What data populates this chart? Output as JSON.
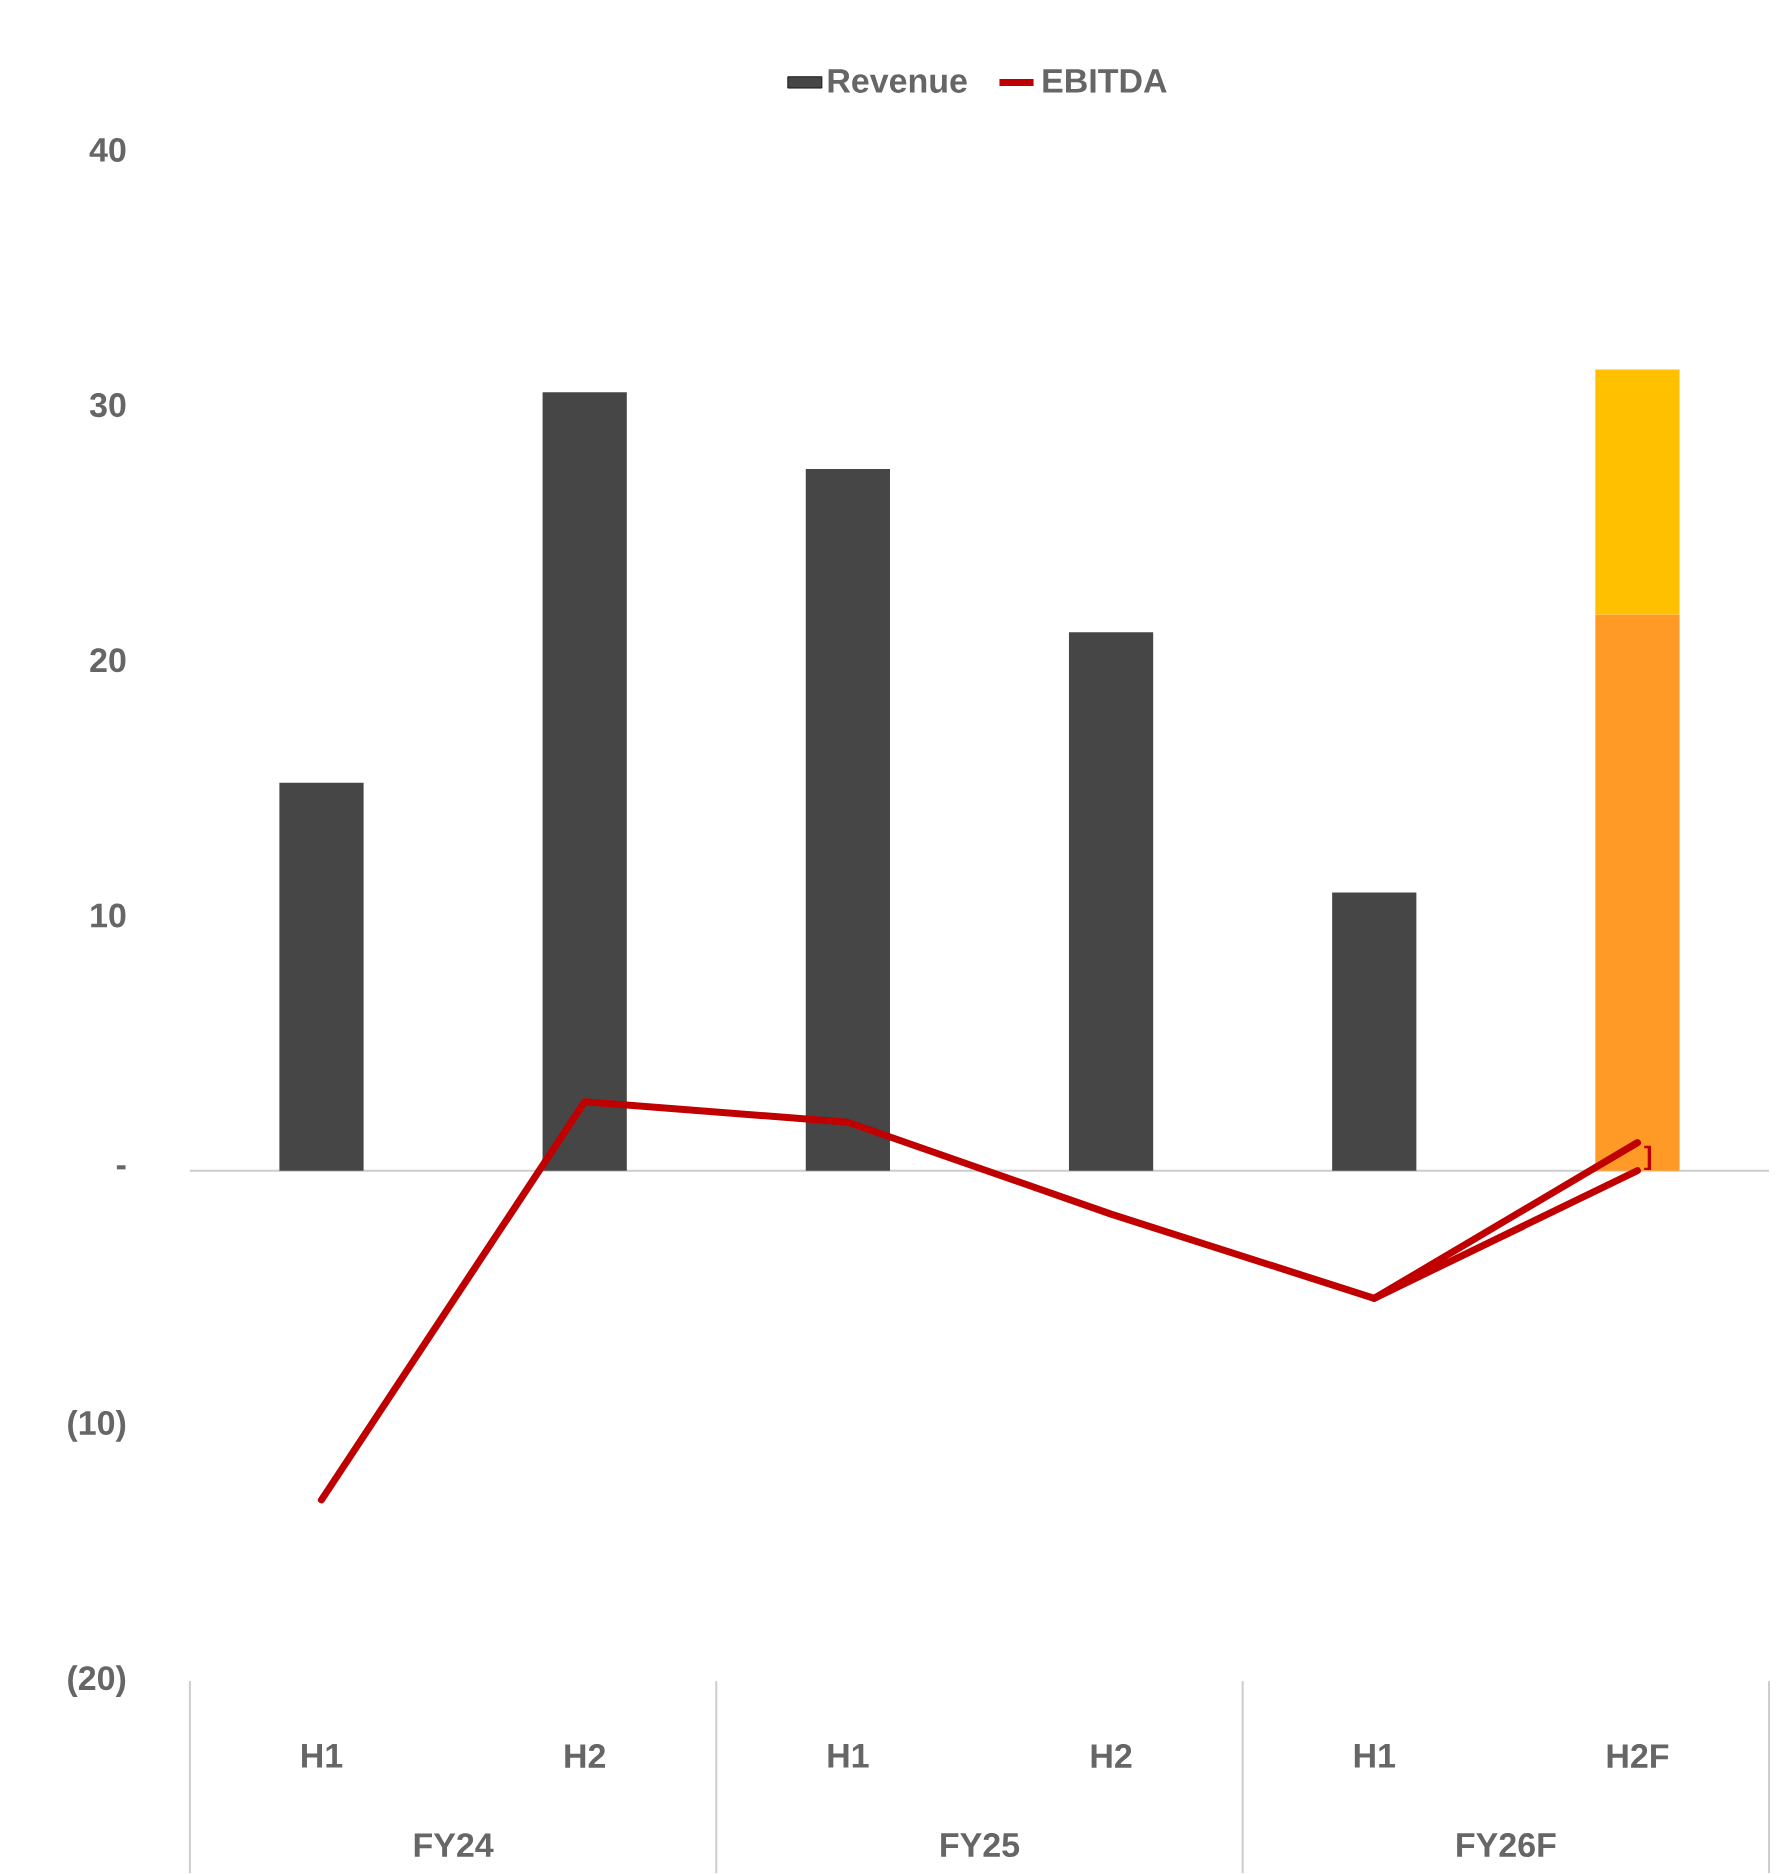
{
  "chart_data": {
    "type": "bar",
    "stacked": true,
    "legend": "top",
    "categories": [
      "H1",
      "H2",
      "H1",
      "H2",
      "H1",
      "H2F"
    ],
    "series": [
      {
        "name": "Revenue",
        "colors": [
          "#464646",
          "#464646",
          "#464646",
          "#464646",
          "#464646",
          "#ff9a26"
        ],
        "values": [
          15.2,
          30.5,
          27.5,
          21.1,
          10.9,
          21.8
        ]
      },
      {
        "color": "#ffc000",
        "values": [
          null,
          null,
          null,
          null,
          null,
          9.6
        ]
      },
      {
        "name": "EBITDA",
        "type": "line",
        "color": "#c00000",
        "values": [
          -12.9,
          2.7,
          1.9,
          -1.7,
          -5.0,
          1.1
        ]
      },
      {
        "type": "line",
        "color": "#c00000",
        "values": [
          null,
          null,
          null,
          null,
          -5.0,
          0.0
        ]
      }
    ],
    "ylim": [
      -20,
      40
    ],
    "yticks": [
      40,
      30,
      20,
      10,
      {
        "value": 0,
        "label": "-"
      },
      {
        "value": -10,
        "label": "(10)"
      },
      {
        "value": -20,
        "label": "(20)"
      }
    ],
    "annotations": [
      "FY24",
      "FY25",
      "FY26F",
      {
        "text": "]",
        "x": "H2F",
        "y": 0.5
      }
    ]
  }
}
